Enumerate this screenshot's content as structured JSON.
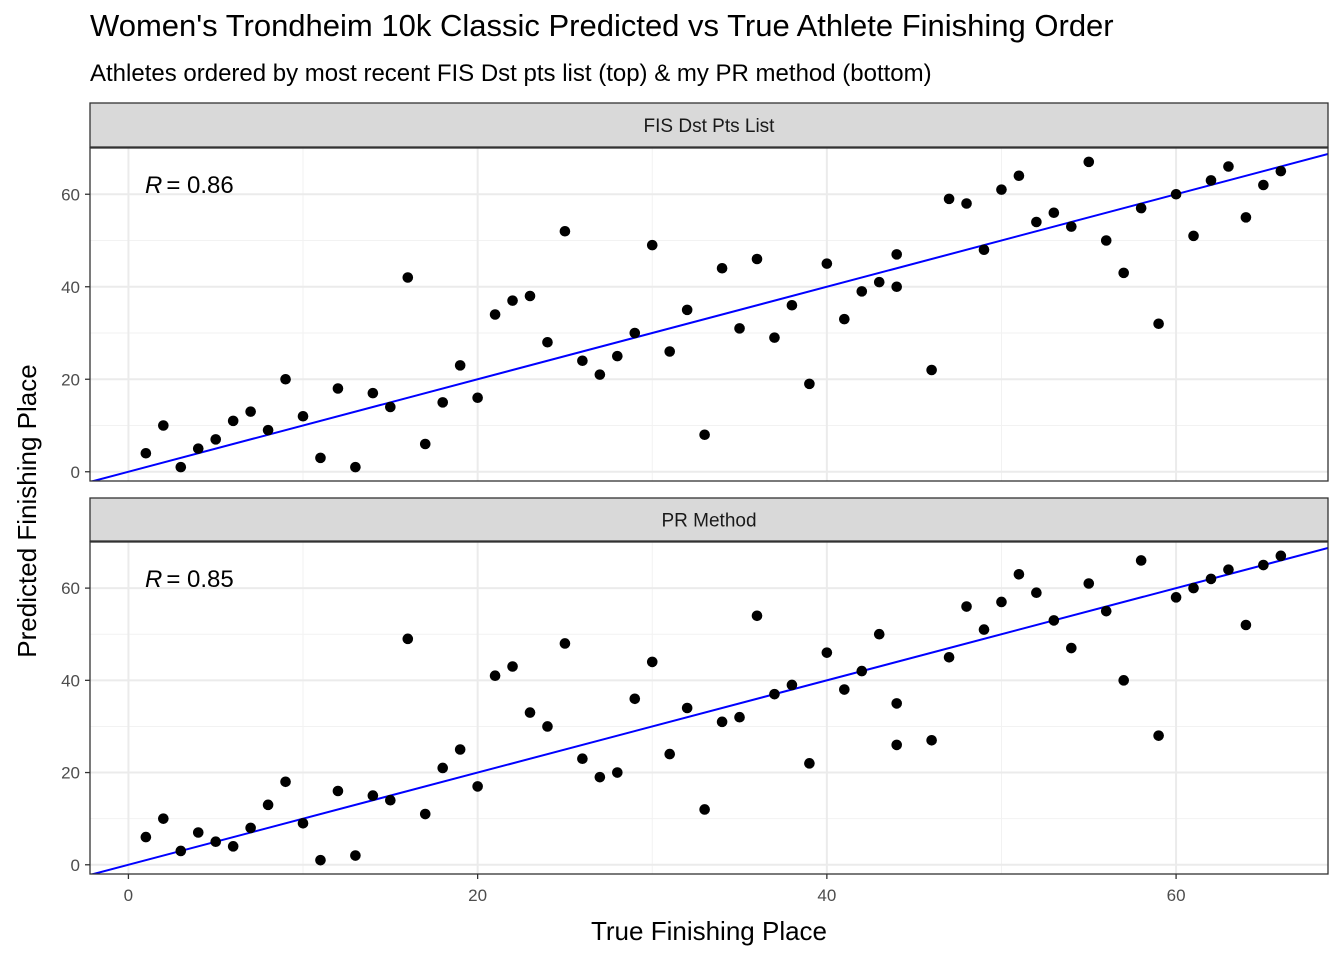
{
  "chart_data": {
    "type": "scatter",
    "title": "Women's Trondheim 10k Classic Predicted vs True Athlete Finishing Order",
    "subtitle": "Athletes ordered by most recent FIS Dst pts list (top) & my PR method (bottom)",
    "xlabel": "True Finishing Place",
    "ylabel": "Predicted Finishing Place",
    "xlim": [
      -2.2,
      68.7
    ],
    "ylim": [
      -2,
      70
    ],
    "xticks": [
      0,
      20,
      40,
      60
    ],
    "yticks": [
      0,
      20,
      40,
      60
    ],
    "grid": true,
    "point_color": "#000000",
    "fit_line_color": "#0000ff",
    "fit_line": {
      "slope": 1,
      "intercept": 0
    },
    "panels": [
      {
        "strip_label": "FIS Dst Pts List",
        "annotation": {
          "r_symbol": "R",
          "r_value": "= 0.86"
        },
        "x": [
          1,
          2,
          3,
          4,
          5,
          6,
          7,
          8,
          9,
          10,
          11,
          12,
          13,
          14,
          15,
          16,
          17,
          18,
          19,
          20,
          21,
          22,
          23,
          24,
          25,
          26,
          27,
          28,
          29,
          30,
          31,
          32,
          33,
          34,
          35,
          36,
          37,
          38,
          39,
          40,
          41,
          42,
          43,
          44,
          44,
          46,
          47,
          48,
          49,
          50,
          51,
          52,
          53,
          54,
          55,
          56,
          57,
          58,
          59,
          60,
          61,
          62,
          63,
          64,
          65,
          66
        ],
        "y": [
          4,
          10,
          1,
          5,
          7,
          11,
          13,
          9,
          20,
          12,
          3,
          18,
          1,
          17,
          14,
          42,
          6,
          15,
          23,
          16,
          34,
          37,
          38,
          28,
          52,
          24,
          21,
          25,
          30,
          49,
          26,
          35,
          8,
          44,
          31,
          46,
          29,
          36,
          19,
          45,
          33,
          39,
          41,
          47,
          40,
          22,
          59,
          58,
          48,
          61,
          64,
          54,
          56,
          53,
          67,
          50,
          43,
          57,
          32,
          60,
          51,
          63,
          66,
          55,
          62,
          65
        ]
      },
      {
        "strip_label": "PR Method",
        "annotation": {
          "r_symbol": "R",
          "r_value": "= 0.85"
        },
        "x": [
          1,
          2,
          3,
          4,
          5,
          6,
          7,
          8,
          9,
          10,
          11,
          12,
          13,
          14,
          15,
          16,
          17,
          18,
          19,
          20,
          21,
          22,
          23,
          24,
          25,
          26,
          27,
          28,
          29,
          30,
          31,
          32,
          33,
          34,
          35,
          36,
          37,
          38,
          39,
          40,
          41,
          42,
          43,
          44,
          44,
          46,
          47,
          48,
          49,
          50,
          51,
          52,
          53,
          54,
          55,
          56,
          57,
          58,
          59,
          60,
          61,
          62,
          63,
          64,
          65,
          66
        ],
        "y": [
          6,
          10,
          3,
          7,
          5,
          4,
          8,
          13,
          18,
          9,
          1,
          16,
          2,
          15,
          14,
          49,
          11,
          21,
          25,
          17,
          41,
          43,
          33,
          30,
          48,
          23,
          19,
          20,
          36,
          44,
          24,
          34,
          12,
          31,
          32,
          54,
          37,
          39,
          22,
          46,
          38,
          42,
          50,
          35,
          26,
          27,
          45,
          56,
          51,
          57,
          63,
          59,
          53,
          47,
          61,
          55,
          40,
          66,
          28,
          58,
          60,
          62,
          64,
          52,
          65,
          67
        ]
      }
    ]
  }
}
